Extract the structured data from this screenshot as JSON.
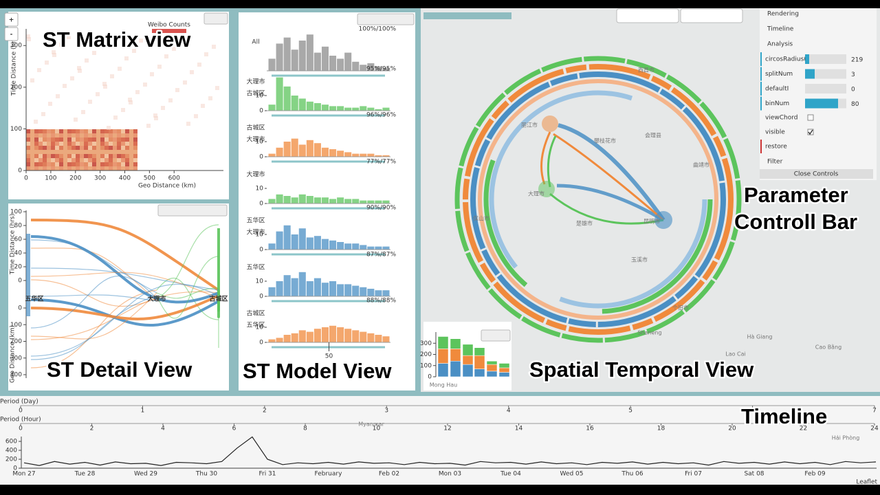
{
  "overlay_labels": {
    "matrix": "ST Matrix view",
    "detail": "ST Detail View",
    "model": "ST Model View",
    "spatial": "Spatial Temporal View",
    "param": [
      "Parameter",
      "Controll Bar"
    ],
    "timeline": "Timeline"
  },
  "zoom": [
    "+",
    "-"
  ],
  "matrix": {
    "legend": "Weibo Counts",
    "xlabel": "Geo Distance (km)",
    "ylabel": "Time Distance (hrs)",
    "xlim": [
      0,
      800
    ],
    "xticks": [
      0,
      100,
      200,
      300,
      400,
      500,
      600
    ],
    "ylim": [
      0,
      340
    ],
    "yticks": [
      0,
      100,
      200,
      300
    ]
  },
  "detail": {
    "time_label": "Time Distance (hrs)",
    "geo_label": "Geo Distance (km)",
    "time_lim": [
      0,
      100
    ],
    "time_ticks": [
      0,
      20,
      40,
      60,
      80,
      100
    ],
    "geo_lim": [
      0,
      400
    ],
    "geo_ticks": [
      0,
      100,
      200,
      300,
      400
    ],
    "nodes": [
      "五华区",
      "大理市",
      "古城区"
    ]
  },
  "model": {
    "xlim": [
      0,
      100
    ],
    "xticks": [
      50
    ],
    "ylim": [
      0,
      25
    ],
    "rows": [
      {
        "labels": [
          "All"
        ],
        "percent": "100%/100%",
        "color": "#8c8c8c",
        "yticks": [],
        "values": [
          8,
          18,
          22,
          14,
          20,
          24,
          12,
          16,
          10,
          8,
          12,
          6,
          4,
          5,
          3,
          2
        ]
      },
      {
        "labels": [
          "大理市",
          "古城区"
        ],
        "percent": "95%/95%",
        "color": "#5cc45c",
        "yticks": [
          0,
          10
        ],
        "values": [
          4,
          22,
          16,
          10,
          8,
          6,
          5,
          4,
          3,
          3,
          2,
          2,
          3,
          2,
          1,
          2
        ]
      },
      {
        "labels": [
          "古城区",
          "大理市"
        ],
        "percent": "96%/96%",
        "color": "#f08a3c",
        "yticks": [
          0,
          10
        ],
        "values": [
          2,
          6,
          10,
          12,
          8,
          11,
          9,
          6,
          5,
          4,
          3,
          2,
          2,
          2,
          1,
          1
        ]
      },
      {
        "labels": [
          "大理市"
        ],
        "percent": "77%/77%",
        "color": "#5cc45c",
        "yticks": [
          0,
          10
        ],
        "values": [
          3,
          6,
          5,
          4,
          6,
          5,
          4,
          4,
          3,
          4,
          3,
          3,
          2,
          2,
          2,
          2
        ]
      },
      {
        "labels": [
          "五华区",
          "大理市"
        ],
        "percent": "90%/90%",
        "color": "#4a8fc4",
        "yticks": [
          0,
          10
        ],
        "values": [
          4,
          12,
          16,
          10,
          14,
          8,
          9,
          7,
          6,
          5,
          4,
          4,
          3,
          2,
          2,
          2
        ]
      },
      {
        "labels": [
          "五华区"
        ],
        "percent": "87%/87%",
        "color": "#4a8fc4",
        "yticks": [
          0,
          10
        ],
        "values": [
          6,
          10,
          14,
          12,
          16,
          10,
          12,
          9,
          10,
          8,
          8,
          7,
          6,
          5,
          4,
          4
        ]
      },
      {
        "labels": [
          "古城区",
          "五华区"
        ],
        "percent": "88%/88%",
        "color": "#f08a3c",
        "yticks": [
          0,
          10
        ],
        "values": [
          2,
          3,
          5,
          6,
          8,
          7,
          9,
          10,
          11,
          10,
          9,
          8,
          7,
          6,
          5,
          4
        ]
      }
    ]
  },
  "controls": {
    "tabs": [
      "Rendering",
      "Timeline",
      "Analysis"
    ],
    "sliders": [
      {
        "label": "circosRadius(",
        "value": 219
      },
      {
        "label": "splitNum",
        "value": 3
      },
      {
        "label": "defaultI",
        "value": 0
      },
      {
        "label": "binNum",
        "value": 80
      }
    ],
    "checks": [
      {
        "label": "viewChord",
        "checked": false
      },
      {
        "label": "visible",
        "checked": true
      }
    ],
    "restore": "restore",
    "filter": "Filter",
    "close": "Close Controls"
  },
  "stacked": {
    "ylim": [
      0,
      400
    ],
    "yticks": [
      0,
      100,
      200,
      300
    ],
    "series": [
      {
        "color": "#4a8fc4",
        "values": [
          120,
          140,
          110,
          70,
          50,
          40
        ]
      },
      {
        "color": "#f08a3c",
        "values": [
          130,
          110,
          80,
          120,
          60,
          40
        ]
      },
      {
        "color": "#5cc45c",
        "values": [
          110,
          90,
          100,
          70,
          30,
          40
        ]
      }
    ]
  },
  "map_labels": [
    "丽江市",
    "大理市",
    "昆明市",
    "西昌市",
    "玉溪市",
    "保山市",
    "曲靖市",
    "Shaneng",
    "Lao Cai",
    "Hà Giang",
    "Cao Bằng",
    "Hải Phòng",
    "Myanmar",
    "个旧市",
    "攀枝花市",
    "会理县",
    "楚雄市",
    "Mong Hau"
  ],
  "timeline": {
    "period_day": "Period (Day)",
    "period_hour": "Period (Hour)",
    "day_ticks": [
      0,
      1,
      2,
      3,
      4,
      5,
      6,
      7
    ],
    "hour_ticks": [
      0,
      2,
      4,
      6,
      8,
      10,
      12,
      14,
      16,
      18,
      20,
      22,
      24
    ],
    "ylim": [
      0,
      700
    ],
    "yticks": [
      0,
      200,
      400,
      600
    ],
    "dates": [
      "Mon 27",
      "Tue 28",
      "Wed 29",
      "Thu 30",
      "Fri 31",
      "February",
      "Feb 02",
      "Mon 03",
      "Tue 04",
      "Wed 05",
      "Thu 06",
      "Fri 07",
      "Sat 08",
      "Feb 09"
    ],
    "values": [
      120,
      60,
      150,
      90,
      130,
      70,
      140,
      100,
      110,
      60,
      130,
      120,
      100,
      150,
      450,
      700,
      200,
      80,
      120,
      100,
      130,
      90,
      140,
      110,
      120,
      80,
      130,
      100,
      110,
      70,
      150,
      120,
      130,
      90,
      140,
      100,
      120,
      80,
      130,
      110,
      140,
      90,
      130,
      100,
      120,
      70,
      150,
      110,
      130,
      90,
      140,
      100,
      130,
      80,
      150,
      120,
      140
    ],
    "attribution": "Leaflet"
  }
}
